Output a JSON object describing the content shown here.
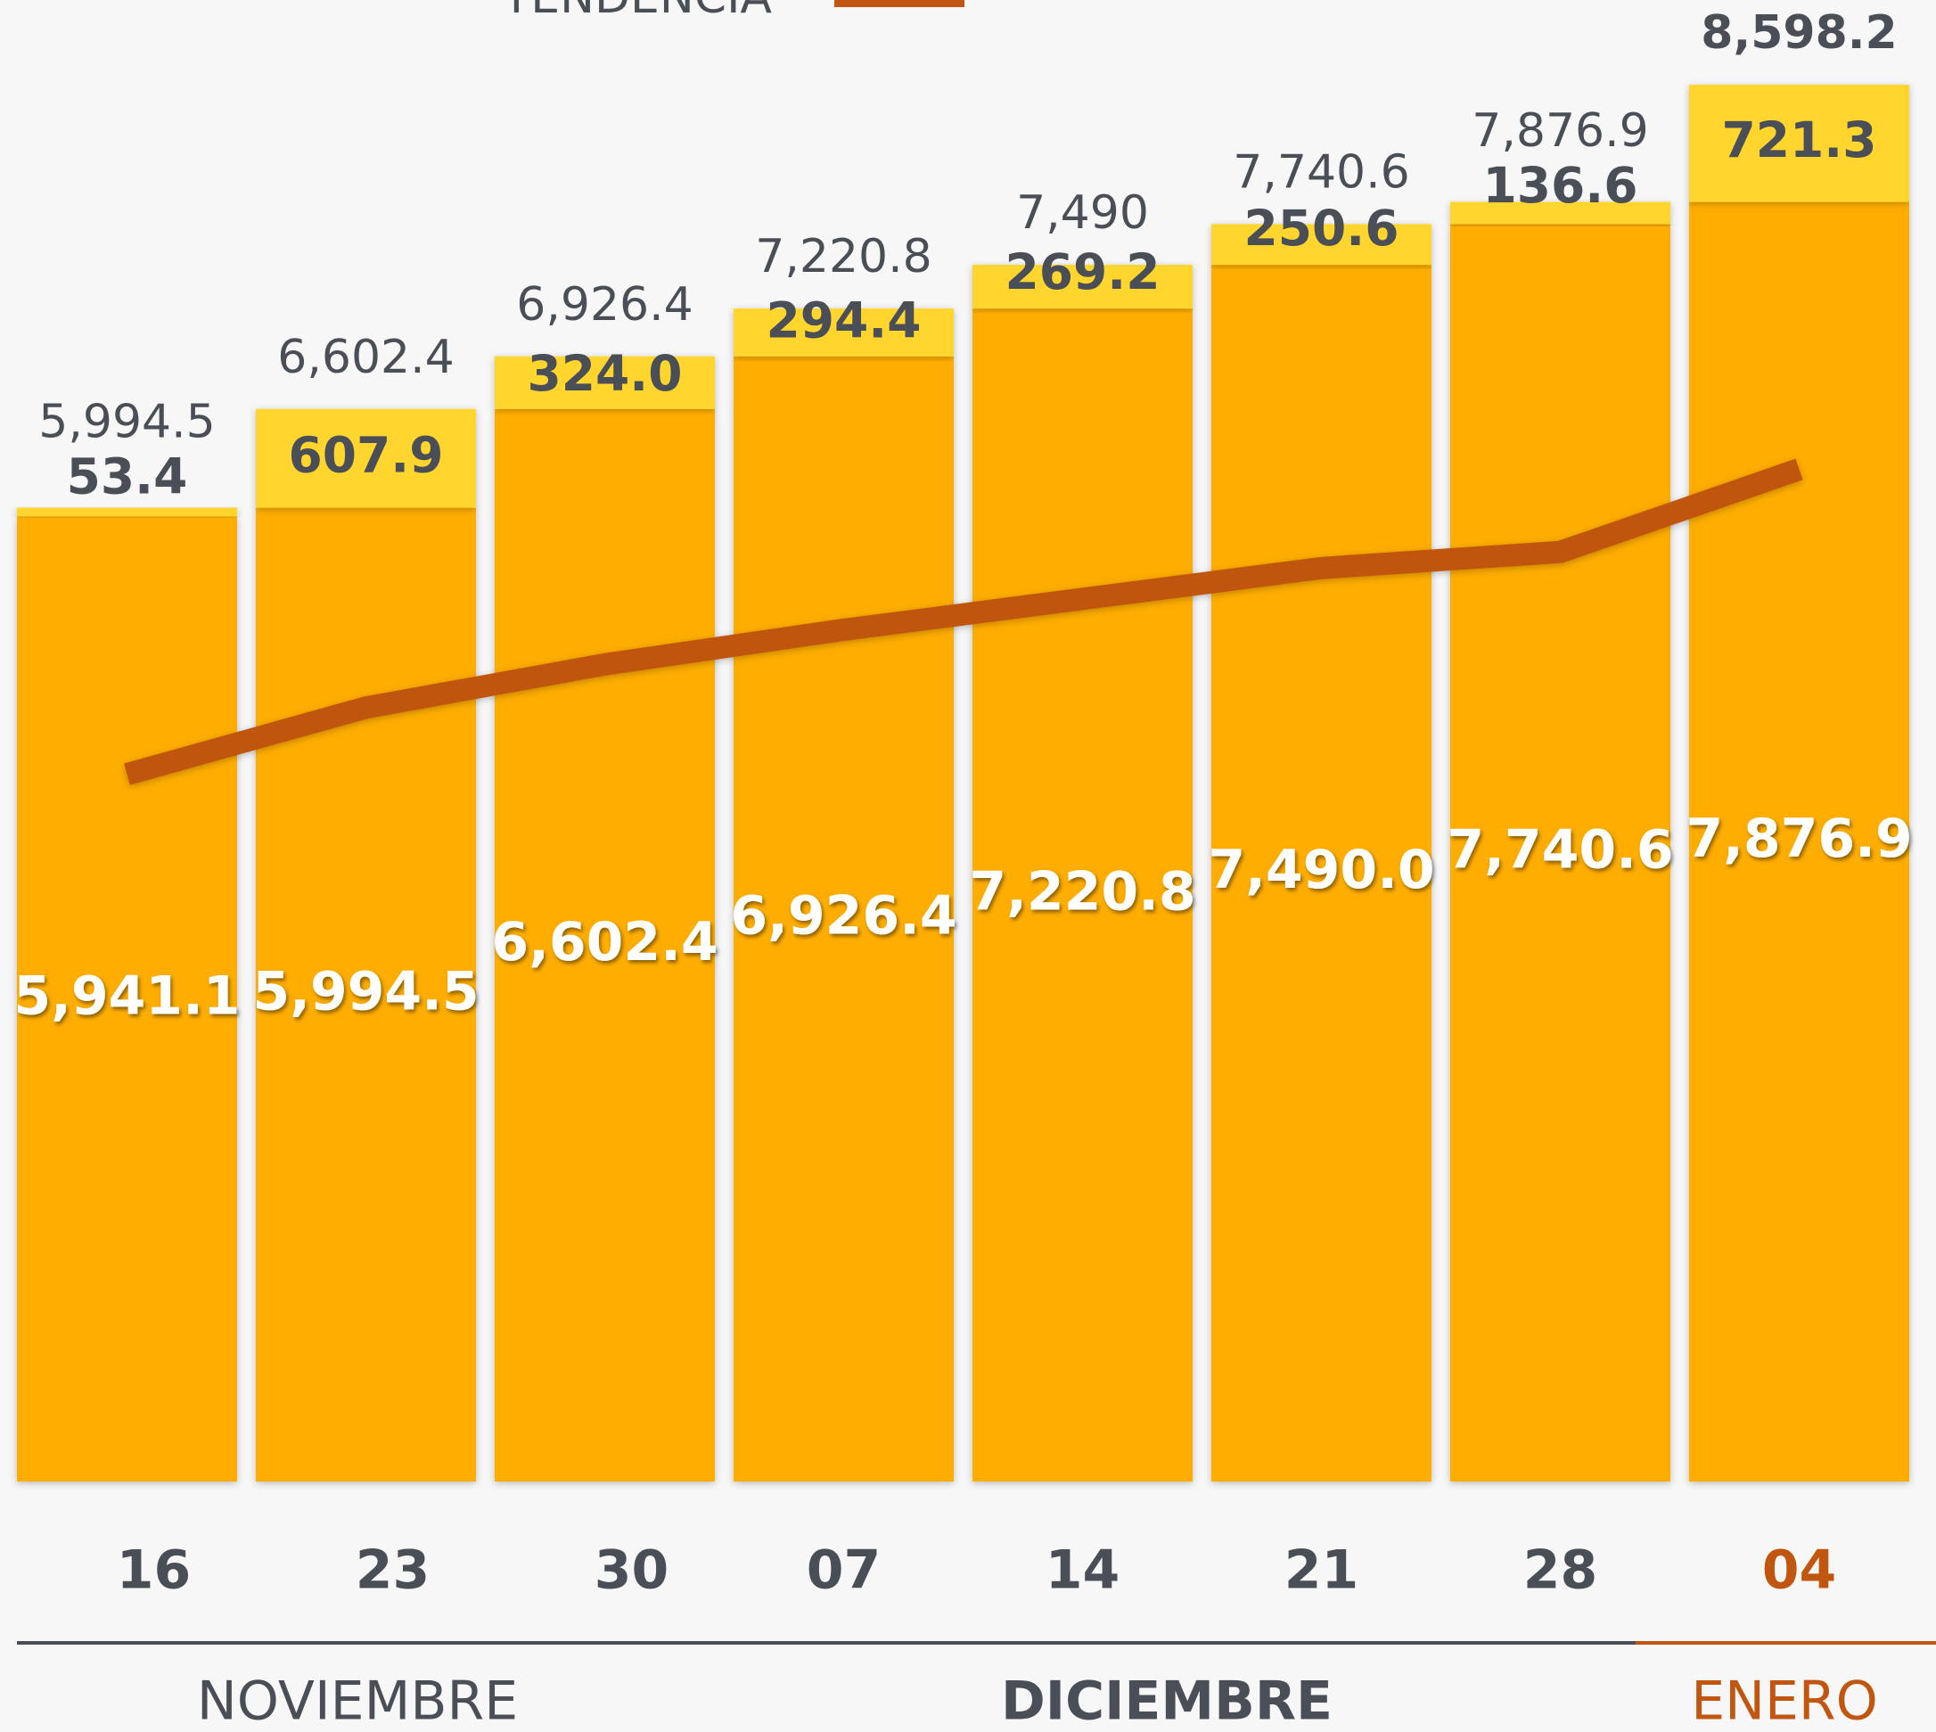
{
  "chart_data": {
    "type": "stacked_bar_line",
    "categories": [
      "16",
      "23",
      "30",
      "07",
      "14",
      "21",
      "28",
      "04"
    ],
    "months": [
      {
        "name": "NOVIEMBRE",
        "count": 3,
        "color": "#4a4f57"
      },
      {
        "name": "DICIEMBRE",
        "count": 4,
        "color": "#4a4f57"
      },
      {
        "name": "ENERO",
        "count": 1,
        "color": "#c0560f"
      }
    ],
    "series": [
      {
        "color": "#ffad00",
        "values": [
          5941.1,
          5994.5,
          6602.4,
          6926.4,
          7220.8,
          7490.0,
          7740.6,
          7876.9
        ],
        "value_labels": [
          "5,941.1",
          "5,994.5",
          "6,602.4",
          "6,926.4",
          "7,220.8",
          "7,490.0",
          "7,740.6",
          "7,876.9"
        ]
      },
      {
        "color": "#ffd52e",
        "values": [
          53.4,
          607.9,
          324.0,
          294.4,
          269.2,
          250.6,
          136.6,
          721.3
        ],
        "value_labels": [
          "53.4",
          "607.9",
          "324.0",
          "294.4",
          "269.2",
          "250.6",
          "136.6",
          "721.3"
        ]
      }
    ],
    "totals": {
      "values": [
        5994.5,
        6602.4,
        6926.4,
        7220.8,
        7490,
        7740.6,
        7876.9,
        8598.2
      ],
      "value_labels": [
        "5,994.5",
        "6,602.4",
        "6,926.4",
        "7,220.8",
        "7,490",
        "7,740.6",
        "7,876.9",
        "8,598.2"
      ]
    },
    "trend": {
      "name": "TENDENCIA",
      "color": "#c0560f",
      "values": [
        4354,
        4764,
        5030,
        5243,
        5433,
        5623,
        5722,
        6231
      ]
    },
    "ylim": [
      0,
      9120
    ]
  }
}
